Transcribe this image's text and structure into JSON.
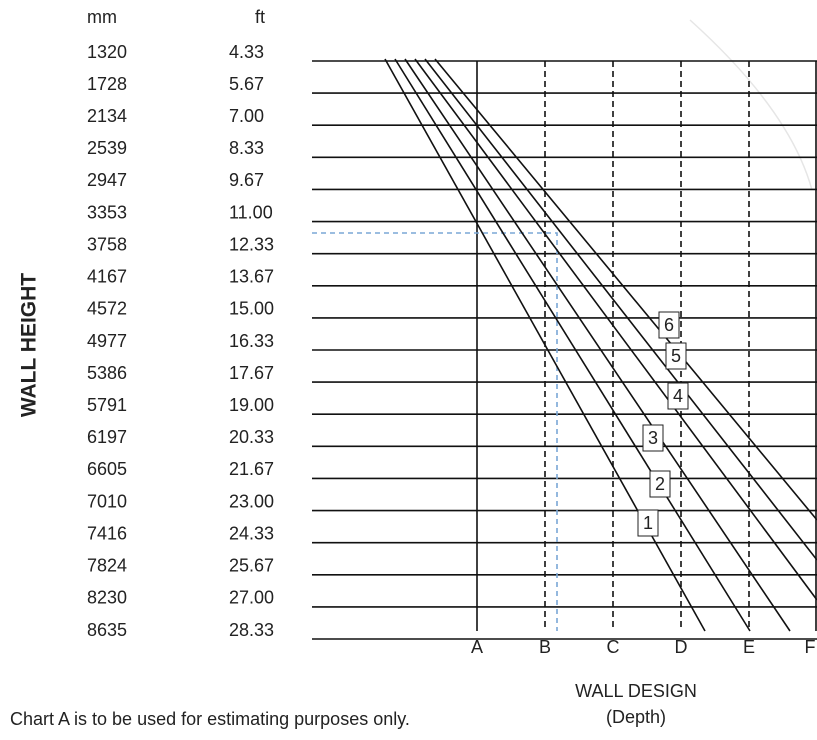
{
  "axis": {
    "y_title": "WALL HEIGHT",
    "x_title": "WALL DESIGN",
    "x_subtitle": "(Depth)",
    "mm_header": "mm",
    "ft_header": "ft"
  },
  "rows": [
    {
      "mm": "1320",
      "ft": "4.33"
    },
    {
      "mm": "1728",
      "ft": "5.67"
    },
    {
      "mm": "2134",
      "ft": "7.00"
    },
    {
      "mm": "2539",
      "ft": "8.33"
    },
    {
      "mm": "2947",
      "ft": "9.67"
    },
    {
      "mm": "3353",
      "ft": "11.00"
    },
    {
      "mm": "3758",
      "ft": "12.33"
    },
    {
      "mm": "4167",
      "ft": "13.67"
    },
    {
      "mm": "4572",
      "ft": "15.00"
    },
    {
      "mm": "4977",
      "ft": "16.33"
    },
    {
      "mm": "5386",
      "ft": "17.67"
    },
    {
      "mm": "5791",
      "ft": "19.00"
    },
    {
      "mm": "6197",
      "ft": "20.33"
    },
    {
      "mm": "6605",
      "ft": "21.67"
    },
    {
      "mm": "7010",
      "ft": "23.00"
    },
    {
      "mm": "7416",
      "ft": "24.33"
    },
    {
      "mm": "7824",
      "ft": "25.67"
    },
    {
      "mm": "8230",
      "ft": "27.00"
    },
    {
      "mm": "8635",
      "ft": "28.33"
    }
  ],
  "columns": [
    "A",
    "B",
    "C",
    "D",
    "E",
    "F"
  ],
  "line_labels": [
    "1",
    "2",
    "3",
    "4",
    "5",
    "6"
  ],
  "note": "Chart A is to be used for estimating purposes only."
}
